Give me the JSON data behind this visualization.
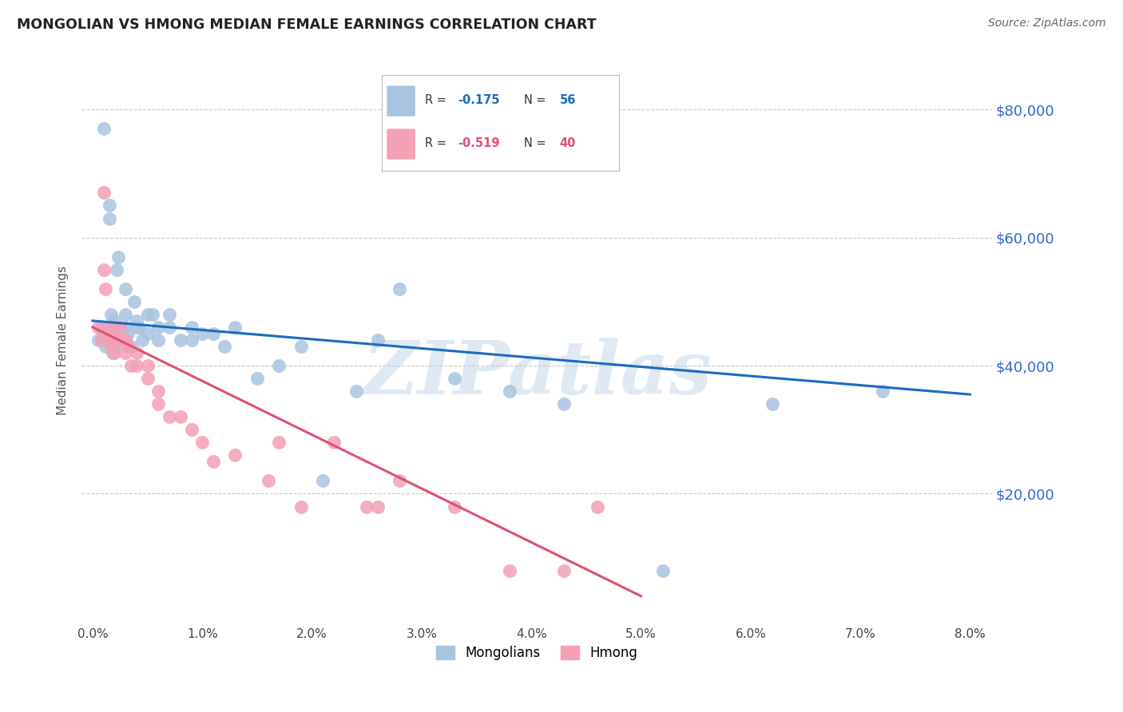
{
  "title": "MONGOLIAN VS HMONG MEDIAN FEMALE EARNINGS CORRELATION CHART",
  "source": "Source: ZipAtlas.com",
  "ylabel": "Median Female Earnings",
  "ytick_labels": [
    "$20,000",
    "$40,000",
    "$60,000",
    "$80,000"
  ],
  "ytick_values": [
    20000,
    40000,
    60000,
    80000
  ],
  "watermark": "ZIPatlas",
  "mongolian_color": "#a8c4e0",
  "hmong_color": "#f4a0b5",
  "mongolian_line_color": "#1a6bbf",
  "hmong_line_color": "#e05070",
  "background_color": "#ffffff",
  "grid_color": "#c8c8c8",
  "title_color": "#222222",
  "source_color": "#666666",
  "ytick_color": "#3366cc",
  "xtick_color": "#444444",
  "mongolian_x": [
    0.0005,
    0.0008,
    0.001,
    0.001,
    0.0012,
    0.0013,
    0.0015,
    0.0015,
    0.0017,
    0.0018,
    0.002,
    0.002,
    0.002,
    0.002,
    0.0022,
    0.0023,
    0.0025,
    0.0025,
    0.003,
    0.003,
    0.003,
    0.003,
    0.0032,
    0.0035,
    0.0038,
    0.004,
    0.004,
    0.0042,
    0.0045,
    0.005,
    0.005,
    0.0055,
    0.006,
    0.006,
    0.007,
    0.007,
    0.008,
    0.009,
    0.009,
    0.01,
    0.011,
    0.012,
    0.013,
    0.015,
    0.017,
    0.019,
    0.021,
    0.024,
    0.026,
    0.028,
    0.033,
    0.038,
    0.043,
    0.052,
    0.062,
    0.072
  ],
  "mongolian_y": [
    44000,
    46000,
    77000,
    45000,
    43000,
    44000,
    63000,
    65000,
    48000,
    42000,
    46000,
    44000,
    47000,
    43000,
    55000,
    57000,
    46000,
    44000,
    52000,
    48000,
    46000,
    44000,
    45000,
    43000,
    50000,
    47000,
    46000,
    46000,
    44000,
    48000,
    45000,
    48000,
    46000,
    44000,
    46000,
    48000,
    44000,
    46000,
    44000,
    45000,
    45000,
    43000,
    46000,
    38000,
    40000,
    43000,
    22000,
    36000,
    44000,
    52000,
    38000,
    36000,
    34000,
    8000,
    34000,
    36000
  ],
  "hmong_x": [
    0.0005,
    0.0008,
    0.001,
    0.001,
    0.0012,
    0.0015,
    0.0015,
    0.0017,
    0.002,
    0.002,
    0.002,
    0.0022,
    0.0025,
    0.003,
    0.003,
    0.0032,
    0.0035,
    0.004,
    0.004,
    0.005,
    0.005,
    0.006,
    0.006,
    0.007,
    0.008,
    0.009,
    0.01,
    0.011,
    0.013,
    0.016,
    0.017,
    0.019,
    0.022,
    0.025,
    0.026,
    0.028,
    0.033,
    0.038,
    0.043,
    0.046
  ],
  "hmong_y": [
    46000,
    44000,
    67000,
    55000,
    52000,
    46000,
    44000,
    43000,
    44000,
    42000,
    46000,
    44000,
    46000,
    44000,
    42000,
    43000,
    40000,
    42000,
    40000,
    40000,
    38000,
    36000,
    34000,
    32000,
    32000,
    30000,
    28000,
    25000,
    26000,
    22000,
    28000,
    18000,
    28000,
    18000,
    18000,
    22000,
    18000,
    8000,
    8000,
    18000
  ],
  "mongolian_trend_x": [
    0.0,
    0.08
  ],
  "mongolian_trend_y": [
    47000,
    35500
  ],
  "hmong_trend_x": [
    0.0,
    0.05
  ],
  "hmong_trend_y": [
    46000,
    4000
  ],
  "xlim": [
    -0.001,
    0.082
  ],
  "ylim": [
    0,
    88000
  ],
  "xtick_positions": [
    0.0,
    0.01,
    0.02,
    0.03,
    0.04,
    0.05,
    0.06,
    0.07,
    0.08
  ],
  "xtick_labels": [
    "0.0%",
    "1.0%",
    "2.0%",
    "3.0%",
    "4.0%",
    "5.0%",
    "6.0%",
    "7.0%",
    "8.0%"
  ]
}
